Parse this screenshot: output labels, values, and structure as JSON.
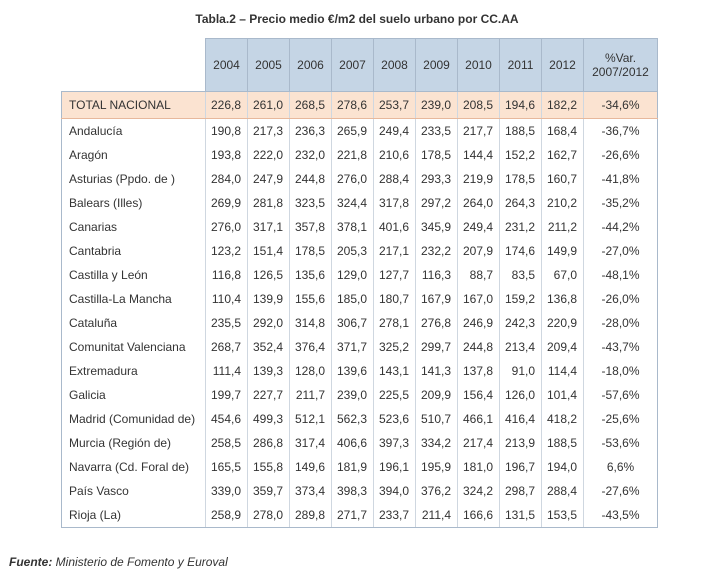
{
  "title": "Tabla.2 – Precio medio €/m2 del suelo urbano por CC.AA",
  "columns": [
    "2004",
    "2005",
    "2006",
    "2007",
    "2008",
    "2009",
    "2010",
    "2011",
    "2012"
  ],
  "var_header": [
    "%Var.",
    "2007/2012"
  ],
  "total": {
    "name": "TOTAL NACIONAL",
    "values": [
      "226,8",
      "261,0",
      "268,5",
      "278,6",
      "253,7",
      "239,0",
      "208,5",
      "194,6",
      "182,2"
    ],
    "var": "-34,6%"
  },
  "rows": [
    {
      "name": "Andalucía",
      "values": [
        "190,8",
        "217,3",
        "236,3",
        "265,9",
        "249,4",
        "233,5",
        "217,7",
        "188,5",
        "168,4"
      ],
      "var": "-36,7%"
    },
    {
      "name": "Aragón",
      "values": [
        "193,8",
        "222,0",
        "232,0",
        "221,8",
        "210,6",
        "178,5",
        "144,4",
        "152,2",
        "162,7"
      ],
      "var": "-26,6%"
    },
    {
      "name": "Asturias (Ppdo. de )",
      "values": [
        "284,0",
        "247,9",
        "244,8",
        "276,0",
        "288,4",
        "293,3",
        "219,9",
        "178,5",
        "160,7"
      ],
      "var": "-41,8%"
    },
    {
      "name": "Balears (Illes)",
      "values": [
        "269,9",
        "281,8",
        "323,5",
        "324,4",
        "317,8",
        "297,2",
        "264,0",
        "264,3",
        "210,2"
      ],
      "var": "-35,2%"
    },
    {
      "name": "Canarias",
      "values": [
        "276,0",
        "317,1",
        "357,8",
        "378,1",
        "401,6",
        "345,9",
        "249,4",
        "231,2",
        "211,2"
      ],
      "var": "-44,2%"
    },
    {
      "name": "Cantabria",
      "values": [
        "123,2",
        "151,4",
        "178,5",
        "205,3",
        "217,1",
        "232,2",
        "207,9",
        "174,6",
        "149,9"
      ],
      "var": "-27,0%"
    },
    {
      "name": "Castilla y León",
      "values": [
        "116,8",
        "126,5",
        "135,6",
        "129,0",
        "127,7",
        "116,3",
        "88,7",
        "83,5",
        "67,0"
      ],
      "var": "-48,1%"
    },
    {
      "name": "Castilla-La Mancha",
      "values": [
        "110,4",
        "139,9",
        "155,6",
        "185,0",
        "180,7",
        "167,9",
        "167,0",
        "159,2",
        "136,8"
      ],
      "var": "-26,0%"
    },
    {
      "name": "Cataluña",
      "values": [
        "235,5",
        "292,0",
        "314,8",
        "306,7",
        "278,1",
        "276,8",
        "246,9",
        "242,3",
        "220,9"
      ],
      "var": "-28,0%"
    },
    {
      "name": "Comunitat Valenciana",
      "values": [
        "268,7",
        "352,4",
        "376,4",
        "371,7",
        "325,2",
        "299,7",
        "244,8",
        "213,4",
        "209,4"
      ],
      "var": "-43,7%"
    },
    {
      "name": "Extremadura",
      "values": [
        "111,4",
        "139,3",
        "128,0",
        "139,6",
        "143,1",
        "141,3",
        "137,8",
        "91,0",
        "114,4"
      ],
      "var": "-18,0%"
    },
    {
      "name": "Galicia",
      "values": [
        "199,7",
        "227,7",
        "211,7",
        "239,0",
        "225,5",
        "209,9",
        "156,4",
        "126,0",
        "101,4"
      ],
      "var": "-57,6%"
    },
    {
      "name": "Madrid (Comunidad de)",
      "values": [
        "454,6",
        "499,3",
        "512,1",
        "562,3",
        "523,6",
        "510,7",
        "466,1",
        "416,4",
        "418,2"
      ],
      "var": "-25,6%"
    },
    {
      "name": "Murcia (Región de)",
      "values": [
        "258,5",
        "286,8",
        "317,4",
        "406,6",
        "397,3",
        "334,2",
        "217,4",
        "213,9",
        "188,5"
      ],
      "var": "-53,6%"
    },
    {
      "name": "Navarra (Cd. Foral de)",
      "values": [
        "165,5",
        "155,8",
        "149,6",
        "181,9",
        "196,1",
        "195,9",
        "181,0",
        "196,7",
        "194,0"
      ],
      "var": "6,6%"
    },
    {
      "name": "País Vasco",
      "values": [
        "339,0",
        "359,7",
        "373,4",
        "398,3",
        "394,0",
        "376,2",
        "324,2",
        "298,7",
        "288,4"
      ],
      "var": "-27,6%"
    },
    {
      "name": "Rioja (La)",
      "values": [
        "258,9",
        "278,0",
        "289,8",
        "271,7",
        "233,7",
        "211,4",
        "166,6",
        "131,5",
        "153,5"
      ],
      "var": "-43,5%"
    }
  ],
  "source_label": "Fuente:",
  "source_text": " Ministerio de Fomento y Euroval"
}
